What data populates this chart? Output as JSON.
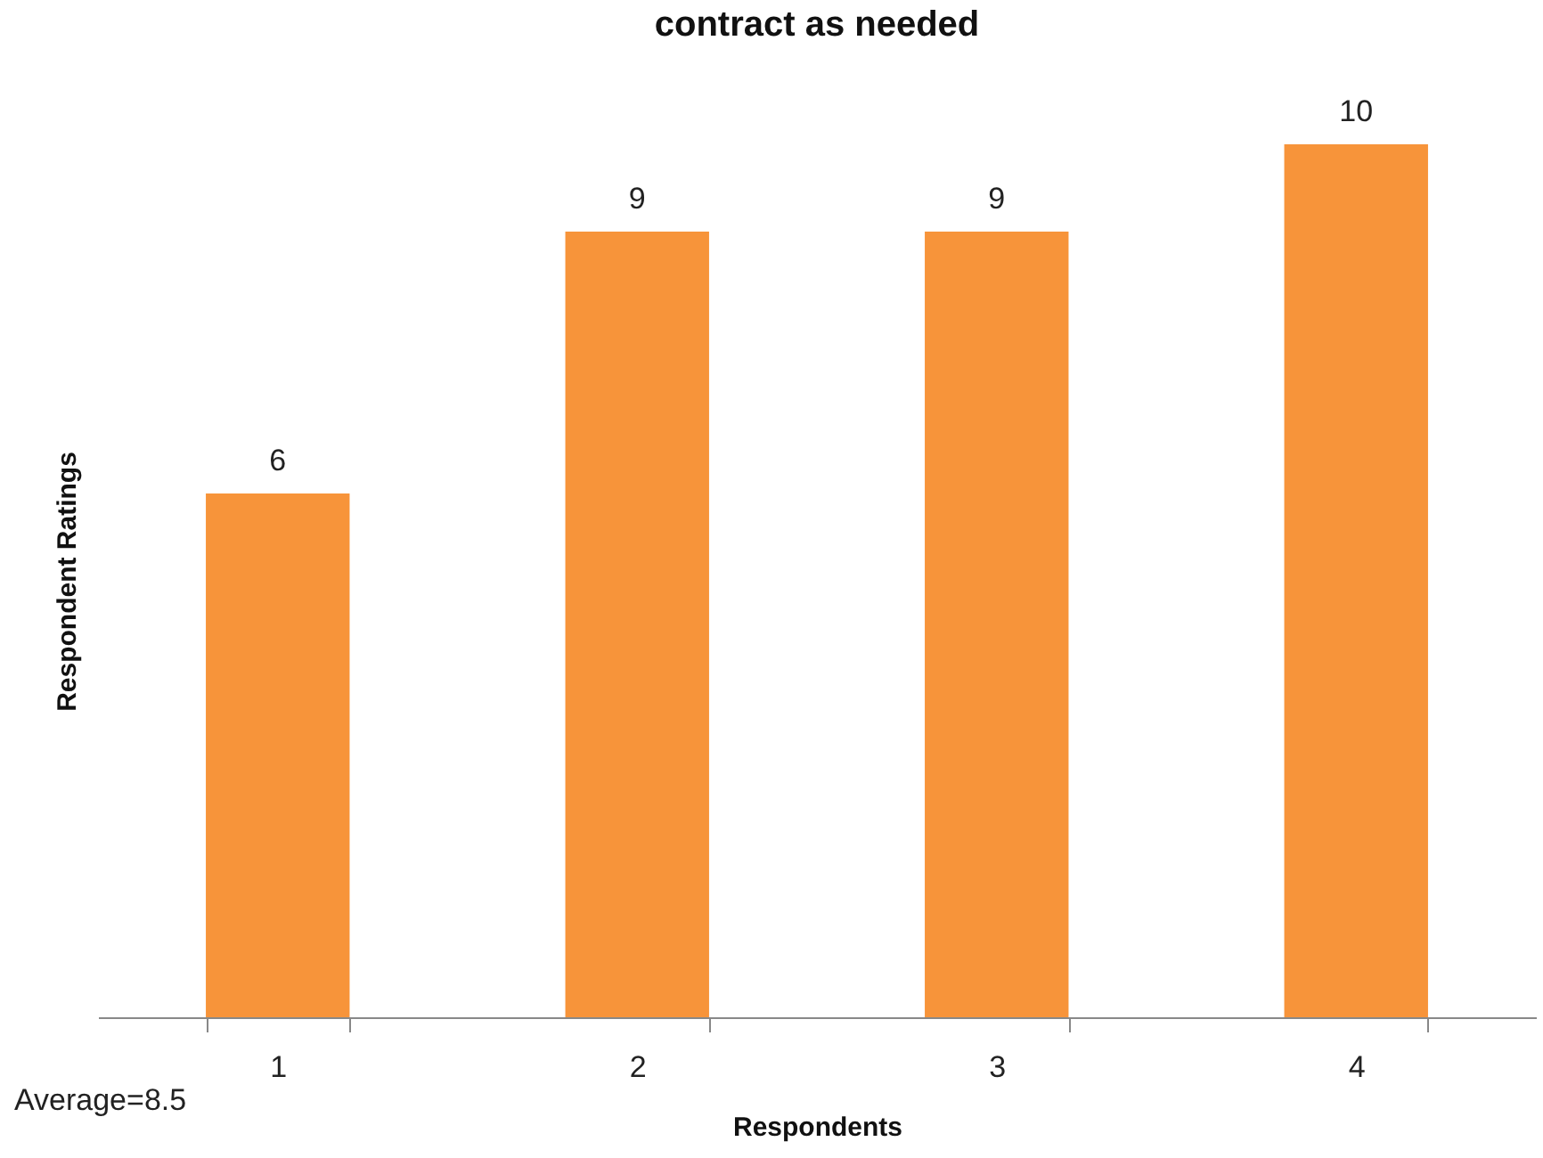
{
  "chart_data": {
    "type": "bar",
    "title": "contract as needed",
    "xlabel": "Respondents",
    "ylabel": "Respondent Ratings",
    "categories": [
      "1",
      "2",
      "3",
      "4"
    ],
    "values": [
      6,
      9,
      9,
      10
    ],
    "color": "#f7943a",
    "data_labels": true,
    "tick_labels": "x",
    "annotations": [
      "Average=8.5"
    ]
  }
}
